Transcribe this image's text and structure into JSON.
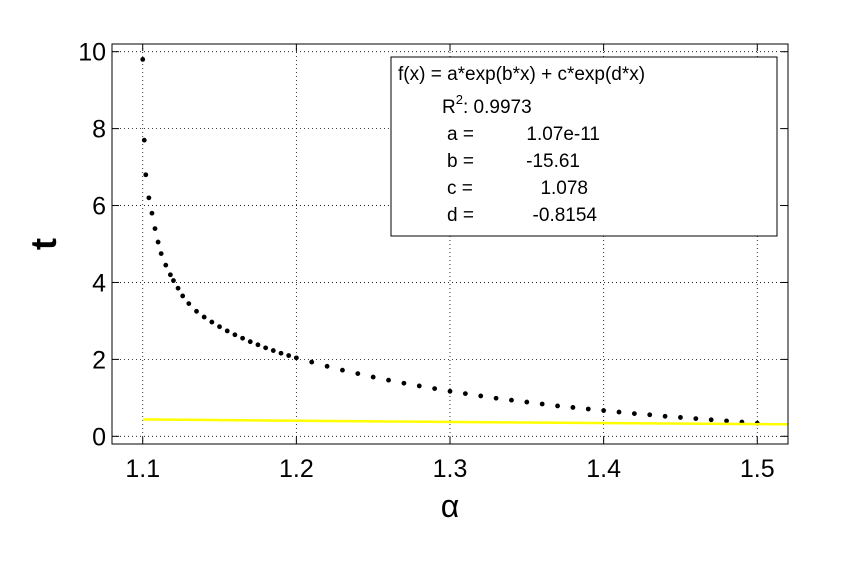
{
  "chart_data": {
    "type": "scatter",
    "xlabel": "α",
    "ylabel": "t",
    "xlim": [
      1.08,
      1.52
    ],
    "ylim": [
      -0.2,
      10.2
    ],
    "x_ticks": [
      "1.1",
      "1.2",
      "1.3",
      "1.4",
      "1.5"
    ],
    "y_ticks": [
      "0",
      "2",
      "4",
      "6",
      "8",
      "10"
    ],
    "grid": true,
    "legend_placement": "top-right",
    "legend": {
      "equation": "f(x) = a*exp(b*x) + c*exp(d*x)",
      "r2_label": "R",
      "r2_sup": "2",
      "r2_value": ": 0.9973",
      "params": [
        {
          "name": "a =",
          "value": "1.07e-11"
        },
        {
          "name": "b =",
          "value": "-15.61"
        },
        {
          "name": "c =",
          "value": "1.078"
        },
        {
          "name": "d =",
          "value": "-0.8154"
        }
      ]
    },
    "fit": {
      "a": 1.07e-11,
      "b": -15.61,
      "c": 1.078,
      "d": -0.8154,
      "x_range": [
        1.1,
        1.52
      ]
    },
    "series": [
      {
        "values": [
          [
            1.1,
            9.8
          ],
          [
            1.101,
            7.7
          ],
          [
            1.102,
            6.8
          ],
          [
            1.104,
            6.2
          ],
          [
            1.106,
            5.8
          ],
          [
            1.108,
            5.4
          ],
          [
            1.11,
            5.05
          ],
          [
            1.112,
            4.75
          ],
          [
            1.115,
            4.45
          ],
          [
            1.118,
            4.2
          ],
          [
            1.12,
            4.05
          ],
          [
            1.123,
            3.85
          ],
          [
            1.126,
            3.65
          ],
          [
            1.13,
            3.45
          ],
          [
            1.135,
            3.25
          ],
          [
            1.14,
            3.1
          ],
          [
            1.145,
            2.97
          ],
          [
            1.15,
            2.85
          ],
          [
            1.155,
            2.74
          ],
          [
            1.16,
            2.64
          ],
          [
            1.165,
            2.55
          ],
          [
            1.17,
            2.46
          ],
          [
            1.175,
            2.38
          ],
          [
            1.18,
            2.3
          ],
          [
            1.185,
            2.23
          ],
          [
            1.19,
            2.16
          ],
          [
            1.195,
            2.1
          ],
          [
            1.2,
            2.04
          ],
          [
            1.21,
            1.93
          ],
          [
            1.22,
            1.82
          ],
          [
            1.23,
            1.72
          ],
          [
            1.24,
            1.63
          ],
          [
            1.25,
            1.54
          ],
          [
            1.26,
            1.46
          ],
          [
            1.27,
            1.38
          ],
          [
            1.28,
            1.31
          ],
          [
            1.29,
            1.24
          ],
          [
            1.3,
            1.17
          ],
          [
            1.31,
            1.11
          ],
          [
            1.32,
            1.05
          ],
          [
            1.33,
            0.99
          ],
          [
            1.34,
            0.94
          ],
          [
            1.35,
            0.89
          ],
          [
            1.36,
            0.84
          ],
          [
            1.37,
            0.79
          ],
          [
            1.38,
            0.75
          ],
          [
            1.39,
            0.71
          ],
          [
            1.4,
            0.67
          ],
          [
            1.41,
            0.63
          ],
          [
            1.42,
            0.59
          ],
          [
            1.43,
            0.56
          ],
          [
            1.44,
            0.52
          ],
          [
            1.45,
            0.49
          ],
          [
            1.46,
            0.46
          ],
          [
            1.47,
            0.43
          ],
          [
            1.48,
            0.4
          ],
          [
            1.49,
            0.37
          ],
          [
            1.5,
            0.34
          ]
        ]
      }
    ],
    "colors": {
      "fit": "#ffff00",
      "data": "#000000",
      "grid": "#000000"
    }
  }
}
